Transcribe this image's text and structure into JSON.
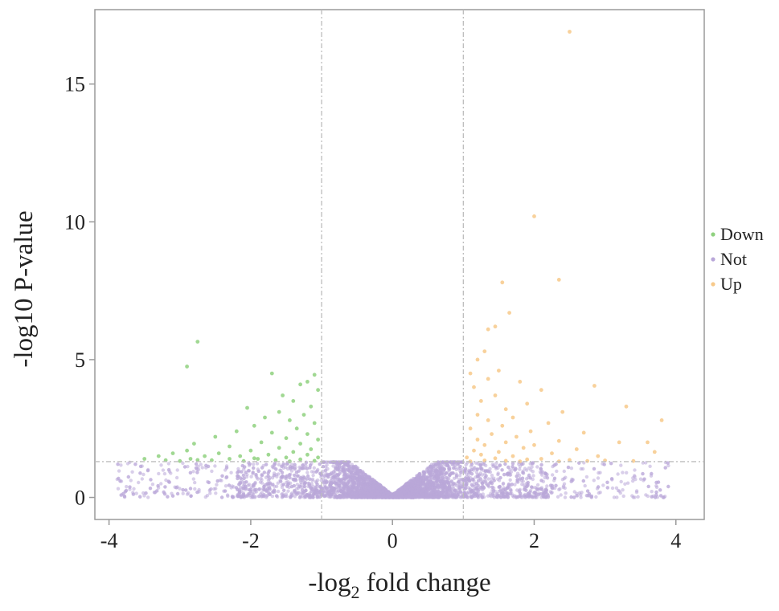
{
  "chart_data": {
    "type": "scatter",
    "title": "",
    "xlabel": "-log",
    "xlabel_subscript": "2",
    "xlabel_suffix": " fold change",
    "ylabel": "-log10 P-value",
    "xlim": [
      -4.2,
      4.4
    ],
    "ylim": [
      -0.8,
      17.7
    ],
    "x_ticks": [
      -4,
      -2,
      0,
      2,
      4
    ],
    "y_ticks": [
      0,
      5,
      10,
      15
    ],
    "grid": false,
    "legend_position": "right",
    "thresholds": {
      "fold_change_lines": [
        -1,
        1
      ],
      "pvalue_line": 1.3
    },
    "colors": {
      "Down": "#8fd17f",
      "Not": "#b9a7d9",
      "Up": "#f7c98a",
      "frame": "#9a9a9a",
      "threshold": "#bdbdbd"
    },
    "series": [
      {
        "name": "Down",
        "points": [
          [
            -2.75,
            5.65
          ],
          [
            -2.9,
            4.75
          ],
          [
            -1.7,
            4.5
          ],
          [
            -1.1,
            4.45
          ],
          [
            -1.2,
            4.2
          ],
          [
            -1.3,
            4.1
          ],
          [
            -1.05,
            3.9
          ],
          [
            -1.55,
            3.7
          ],
          [
            -1.4,
            3.5
          ],
          [
            -1.15,
            3.3
          ],
          [
            -2.05,
            3.25
          ],
          [
            -1.6,
            3.1
          ],
          [
            -1.25,
            3.0
          ],
          [
            -1.8,
            2.9
          ],
          [
            -1.45,
            2.8
          ],
          [
            -1.1,
            2.7
          ],
          [
            -1.95,
            2.6
          ],
          [
            -1.35,
            2.5
          ],
          [
            -2.2,
            2.4
          ],
          [
            -1.7,
            2.35
          ],
          [
            -1.2,
            2.3
          ],
          [
            -2.5,
            2.2
          ],
          [
            -1.5,
            2.15
          ],
          [
            -1.05,
            2.1
          ],
          [
            -1.85,
            2.0
          ],
          [
            -2.8,
            1.95
          ],
          [
            -1.3,
            1.95
          ],
          [
            -2.3,
            1.85
          ],
          [
            -1.6,
            1.8
          ],
          [
            -1.15,
            1.75
          ],
          [
            -2.9,
            1.7
          ],
          [
            -2.0,
            1.7
          ],
          [
            -1.4,
            1.65
          ],
          [
            -3.1,
            1.6
          ],
          [
            -2.45,
            1.6
          ],
          [
            -1.75,
            1.55
          ],
          [
            -1.2,
            1.55
          ],
          [
            -3.3,
            1.5
          ],
          [
            -2.65,
            1.5
          ],
          [
            -2.15,
            1.5
          ],
          [
            -1.5,
            1.45
          ],
          [
            -1.05,
            1.45
          ],
          [
            -3.5,
            1.4
          ],
          [
            -2.85,
            1.4
          ],
          [
            -2.3,
            1.4
          ],
          [
            -1.9,
            1.4
          ],
          [
            -1.3,
            1.38
          ],
          [
            -3.2,
            1.35
          ],
          [
            -2.55,
            1.35
          ],
          [
            -1.65,
            1.35
          ],
          [
            -1.1,
            1.33
          ],
          [
            -3.0,
            1.32
          ],
          [
            -2.1,
            1.32
          ],
          [
            -1.45,
            1.31
          ],
          [
            -2.75,
            1.36
          ],
          [
            -1.95,
            1.42
          ]
        ]
      },
      {
        "name": "Not"
      },
      {
        "name": "Up",
        "points": [
          [
            1.3,
            5.3
          ],
          [
            1.2,
            5.0
          ],
          [
            1.5,
            4.6
          ],
          [
            1.1,
            4.5
          ],
          [
            1.35,
            4.3
          ],
          [
            1.8,
            4.2
          ],
          [
            1.15,
            4.0
          ],
          [
            2.1,
            3.9
          ],
          [
            1.45,
            3.7
          ],
          [
            1.25,
            3.5
          ],
          [
            1.9,
            3.4
          ],
          [
            1.6,
            3.2
          ],
          [
            2.4,
            3.1
          ],
          [
            1.2,
            3.0
          ],
          [
            1.7,
            2.9
          ],
          [
            1.35,
            2.8
          ],
          [
            2.2,
            2.7
          ],
          [
            1.55,
            2.6
          ],
          [
            1.1,
            2.5
          ],
          [
            1.95,
            2.4
          ],
          [
            2.7,
            2.35
          ],
          [
            1.4,
            2.3
          ],
          [
            1.75,
            2.2
          ],
          [
            1.2,
            2.1
          ],
          [
            2.35,
            2.05
          ],
          [
            1.6,
            2.0
          ],
          [
            3.2,
            2.0
          ],
          [
            1.3,
            1.9
          ],
          [
            2.0,
            1.9
          ],
          [
            1.85,
            1.8
          ],
          [
            2.6,
            1.75
          ],
          [
            1.15,
            1.7
          ],
          [
            1.5,
            1.65
          ],
          [
            3.7,
            1.65
          ],
          [
            2.25,
            1.6
          ],
          [
            1.25,
            1.55
          ],
          [
            1.7,
            1.5
          ],
          [
            2.9,
            1.5
          ],
          [
            1.05,
            1.45
          ],
          [
            1.45,
            1.42
          ],
          [
            2.1,
            1.4
          ],
          [
            1.9,
            1.38
          ],
          [
            2.5,
            1.36
          ],
          [
            1.3,
            1.34
          ],
          [
            3.0,
            1.34
          ],
          [
            1.6,
            1.33
          ],
          [
            2.75,
            1.32
          ],
          [
            3.4,
            1.32
          ],
          [
            1.1,
            1.31
          ],
          [
            2.35,
            1.31
          ],
          [
            1.8,
            1.31
          ],
          [
            3.8,
            2.8
          ],
          [
            3.6,
            2.0
          ],
          [
            3.3,
            3.3
          ]
        ]
      }
    ],
    "extra_points": [
      {
        "x": 2.5,
        "y": 16.9,
        "color": "#f7c98a"
      },
      {
        "x": 2.0,
        "y": 10.2,
        "color": "#f7c98a"
      },
      {
        "x": 2.35,
        "y": 7.9,
        "color": "#f7c98a"
      },
      {
        "x": 1.55,
        "y": 7.8,
        "color": "#f7c98a"
      },
      {
        "x": 1.65,
        "y": 6.7,
        "color": "#f7c98a"
      },
      {
        "x": 1.45,
        "y": 6.2,
        "color": "#f7c98a"
      },
      {
        "x": 1.35,
        "y": 6.1,
        "color": "#f7c98a"
      },
      {
        "x": 2.85,
        "y": 4.05,
        "color": "#f7c98a"
      }
    ]
  }
}
